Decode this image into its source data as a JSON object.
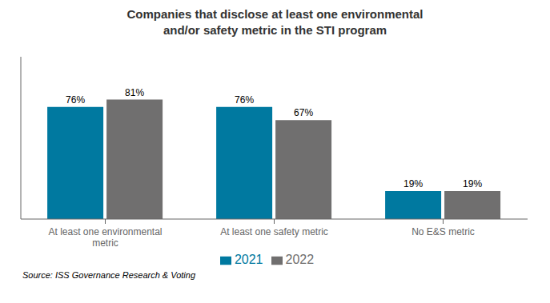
{
  "chart_data": {
    "type": "bar",
    "title": "Companies that disclose at least one environmental\nand/or safety metric in the STI program",
    "categories": [
      "At least one environmental\nmetric",
      "At least one safety metric",
      "No E&S metric"
    ],
    "series": [
      {
        "name": "2021",
        "color": "#0079a0",
        "values": [
          76,
          76,
          19
        ],
        "value_labels": [
          "76%",
          "76%",
          "19%"
        ]
      },
      {
        "name": "2022",
        "color": "#706f6f",
        "values": [
          81,
          67,
          19
        ],
        "value_labels": [
          "81%",
          "67%",
          "19%"
        ]
      }
    ],
    "ylim": [
      0,
      110
    ],
    "data_labels": true,
    "tick_labels": "x",
    "grid": false,
    "legend": "bottom",
    "annotations": [
      "Source: ISS Governance Research & Voting"
    ]
  }
}
